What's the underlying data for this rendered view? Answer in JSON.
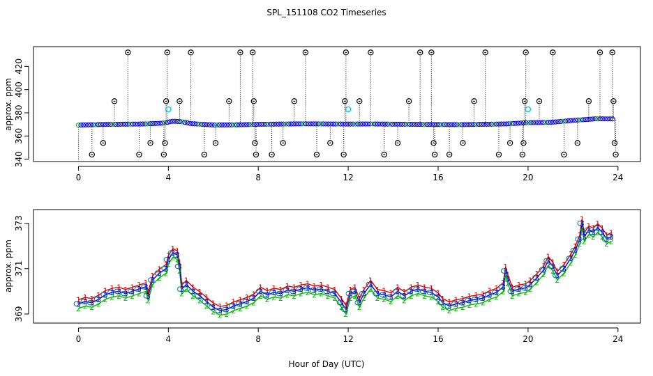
{
  "title": "SPL_151108  CO2 Timeseries",
  "xlabel": "Hour of Day (UTC)",
  "colors": {
    "red": "#dd0000",
    "green": "#00bb00",
    "blue": "#0000dd",
    "cyan": "#00cccc",
    "black": "#000000"
  },
  "chart_data": [
    {
      "type": "scatter",
      "ylabel": "approx. ppm",
      "xlim": [
        -2,
        25
      ],
      "ylim": [
        338,
        437
      ],
      "xticks": [
        0,
        4,
        8,
        12,
        16,
        20,
        24
      ],
      "yticks": [
        340,
        360,
        380,
        400,
        420
      ],
      "ytick_labels": [
        "340",
        "360",
        "380",
        "400",
        "420"
      ],
      "baseline": [
        [
          0,
          369.4
        ],
        [
          1,
          369.9
        ],
        [
          2,
          370.2
        ],
        [
          3,
          370.4
        ],
        [
          3.8,
          371.1
        ],
        [
          4.2,
          372.8
        ],
        [
          4.6,
          372.3
        ],
        [
          5,
          370.7
        ],
        [
          6,
          369.5
        ],
        [
          7,
          369.6
        ],
        [
          8,
          370.1
        ],
        [
          10,
          370.5
        ],
        [
          12,
          370.3
        ],
        [
          13,
          370.4
        ],
        [
          16,
          369.9
        ],
        [
          17,
          369.8
        ],
        [
          19,
          370.4
        ],
        [
          20,
          371.5
        ],
        [
          21,
          371.8
        ],
        [
          22,
          373.4
        ],
        [
          23,
          374.8
        ],
        [
          23.8,
          374.7
        ]
      ],
      "outliers_high": [
        {
          "x": 0.6,
          "y": 344
        },
        {
          "x": 1.1,
          "y": 354
        },
        {
          "x": 1.6,
          "y": 390
        },
        {
          "x": 2.2,
          "y": 432
        },
        {
          "x": 2.7,
          "y": 344
        },
        {
          "x": 3.2,
          "y": 354
        },
        {
          "x": 3.8,
          "y": 344
        },
        {
          "x": 3.85,
          "y": 354
        },
        {
          "x": 3.9,
          "y": 390
        },
        {
          "x": 3.95,
          "y": 432
        },
        {
          "x": 4.5,
          "y": 390
        },
        {
          "x": 5.0,
          "y": 432
        },
        {
          "x": 5.6,
          "y": 344
        },
        {
          "x": 6.1,
          "y": 354
        },
        {
          "x": 6.7,
          "y": 390
        },
        {
          "x": 7.2,
          "y": 432
        },
        {
          "x": 7.75,
          "y": 432
        },
        {
          "x": 7.8,
          "y": 390
        },
        {
          "x": 7.85,
          "y": 354
        },
        {
          "x": 7.9,
          "y": 344
        },
        {
          "x": 8.6,
          "y": 344
        },
        {
          "x": 9.1,
          "y": 354
        },
        {
          "x": 9.6,
          "y": 390
        },
        {
          "x": 10.1,
          "y": 432
        },
        {
          "x": 10.6,
          "y": 344
        },
        {
          "x": 11.2,
          "y": 354
        },
        {
          "x": 11.8,
          "y": 344
        },
        {
          "x": 11.85,
          "y": 390
        },
        {
          "x": 11.9,
          "y": 432
        },
        {
          "x": 12.5,
          "y": 390
        },
        {
          "x": 13.0,
          "y": 432
        },
        {
          "x": 13.6,
          "y": 344
        },
        {
          "x": 14.2,
          "y": 354
        },
        {
          "x": 14.7,
          "y": 390
        },
        {
          "x": 15.2,
          "y": 432
        },
        {
          "x": 15.7,
          "y": 432
        },
        {
          "x": 15.8,
          "y": 354
        },
        {
          "x": 15.85,
          "y": 344
        },
        {
          "x": 16.5,
          "y": 344
        },
        {
          "x": 17.1,
          "y": 354
        },
        {
          "x": 17.6,
          "y": 390
        },
        {
          "x": 18.1,
          "y": 432
        },
        {
          "x": 18.7,
          "y": 344
        },
        {
          "x": 19.2,
          "y": 354
        },
        {
          "x": 19.75,
          "y": 344
        },
        {
          "x": 19.8,
          "y": 354
        },
        {
          "x": 19.85,
          "y": 390
        },
        {
          "x": 19.9,
          "y": 432
        },
        {
          "x": 20.5,
          "y": 390
        },
        {
          "x": 21.1,
          "y": 432
        },
        {
          "x": 21.6,
          "y": 344
        },
        {
          "x": 22.2,
          "y": 354
        },
        {
          "x": 22.7,
          "y": 390
        },
        {
          "x": 23.2,
          "y": 432
        },
        {
          "x": 23.75,
          "y": 432
        },
        {
          "x": 23.8,
          "y": 390
        },
        {
          "x": 23.85,
          "y": 354
        },
        {
          "x": 23.9,
          "y": 344
        }
      ],
      "cyan_points": [
        {
          "x": 4.0,
          "y": 383
        },
        {
          "x": 12.0,
          "y": 383
        },
        {
          "x": 20.0,
          "y": 383
        }
      ]
    },
    {
      "type": "scatter",
      "ylabel": "approx. ppm",
      "xlim": [
        -2,
        25
      ],
      "ylim": [
        368.6,
        373.6
      ],
      "xticks": [
        0,
        4,
        8,
        12,
        16,
        20,
        24
      ],
      "yticks": [
        369,
        371,
        373
      ],
      "ytick_labels": [
        "369",
        "371",
        "373"
      ],
      "series": [
        {
          "marker": "1",
          "color": "red",
          "offset": 0.18
        },
        {
          "marker": "2",
          "color": "green",
          "offset": -0.2
        },
        {
          "marker": "3",
          "color": "blue",
          "offset": 0.0
        }
      ],
      "points": [
        [
          0.0,
          369.45
        ],
        [
          0.3,
          369.55
        ],
        [
          0.6,
          369.5
        ],
        [
          0.9,
          369.65
        ],
        [
          1.2,
          369.85
        ],
        [
          1.5,
          369.95
        ],
        [
          1.8,
          370.0
        ],
        [
          2.1,
          369.9
        ],
        [
          2.4,
          370.0
        ],
        [
          2.7,
          370.1
        ],
        [
          3.0,
          370.2
        ],
        [
          3.1,
          369.8
        ],
        [
          3.3,
          370.5
        ],
        [
          3.6,
          370.8
        ],
        [
          3.9,
          371.0
        ],
        [
          4.0,
          371.4
        ],
        [
          4.2,
          371.7
        ],
        [
          4.4,
          371.6
        ],
        [
          4.5,
          371.1
        ],
        [
          4.6,
          370.1
        ],
        [
          4.8,
          370.3
        ],
        [
          5.1,
          370.0
        ],
        [
          5.4,
          369.8
        ],
        [
          5.7,
          369.55
        ],
        [
          6.0,
          369.3
        ],
        [
          6.3,
          369.15
        ],
        [
          6.6,
          369.2
        ],
        [
          6.9,
          369.35
        ],
        [
          7.2,
          369.45
        ],
        [
          7.5,
          369.55
        ],
        [
          7.8,
          369.7
        ],
        [
          8.1,
          370.0
        ],
        [
          8.4,
          369.85
        ],
        [
          8.7,
          369.95
        ],
        [
          9.0,
          369.9
        ],
        [
          9.3,
          370.05
        ],
        [
          9.6,
          370.0
        ],
        [
          9.9,
          370.1
        ],
        [
          10.2,
          370.15
        ],
        [
          10.5,
          370.05
        ],
        [
          10.8,
          370.1
        ],
        [
          11.1,
          370.0
        ],
        [
          11.4,
          369.9
        ],
        [
          11.7,
          369.5
        ],
        [
          11.9,
          369.2
        ],
        [
          12.1,
          369.9
        ],
        [
          12.3,
          370.0
        ],
        [
          12.5,
          369.5
        ],
        [
          12.7,
          369.9
        ],
        [
          13.0,
          370.3
        ],
        [
          13.3,
          369.9
        ],
        [
          13.6,
          369.85
        ],
        [
          13.9,
          369.75
        ],
        [
          14.2,
          370.0
        ],
        [
          14.5,
          369.8
        ],
        [
          14.8,
          370.0
        ],
        [
          15.1,
          370.1
        ],
        [
          15.4,
          370.0
        ],
        [
          15.7,
          369.95
        ],
        [
          16.0,
          369.75
        ],
        [
          16.2,
          369.5
        ],
        [
          16.5,
          369.35
        ],
        [
          16.8,
          369.45
        ],
        [
          17.1,
          369.5
        ],
        [
          17.4,
          369.6
        ],
        [
          17.7,
          369.65
        ],
        [
          18.0,
          369.7
        ],
        [
          18.3,
          369.85
        ],
        [
          18.6,
          369.95
        ],
        [
          18.9,
          370.2
        ],
        [
          19.0,
          370.9
        ],
        [
          19.1,
          370.55
        ],
        [
          19.3,
          370.0
        ],
        [
          19.6,
          370.1
        ],
        [
          19.9,
          370.15
        ],
        [
          20.1,
          370.3
        ],
        [
          20.4,
          370.6
        ],
        [
          20.7,
          370.95
        ],
        [
          20.9,
          371.35
        ],
        [
          21.1,
          371.1
        ],
        [
          21.3,
          370.7
        ],
        [
          21.6,
          371.0
        ],
        [
          21.9,
          371.45
        ],
        [
          22.1,
          371.8
        ],
        [
          22.3,
          372.3
        ],
        [
          22.4,
          373.0
        ],
        [
          22.5,
          372.4
        ],
        [
          22.7,
          372.7
        ],
        [
          22.9,
          372.6
        ],
        [
          23.1,
          372.8
        ],
        [
          23.3,
          372.6
        ],
        [
          23.5,
          372.3
        ],
        [
          23.7,
          372.4
        ]
      ]
    }
  ]
}
